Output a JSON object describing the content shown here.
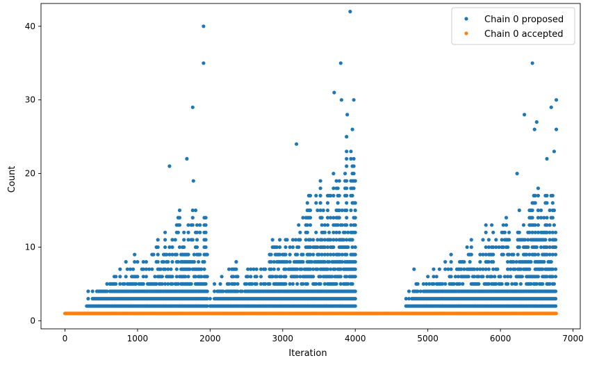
{
  "chart_data": {
    "type": "scatter",
    "xlabel": "Iteration",
    "ylabel": "Count",
    "xlim": [
      -330,
      7100
    ],
    "ylim": [
      -1.1,
      43.1
    ],
    "xticks": [
      0,
      1000,
      2000,
      3000,
      4000,
      5000,
      6000,
      7000
    ],
    "yticks": [
      0,
      10,
      20,
      30,
      40
    ],
    "grid": false,
    "legend": {
      "placement": "top-right"
    },
    "series": [
      {
        "name": "Chain 0 proposed",
        "color": "#1f77b4",
        "marker": "circle",
        "envelopes": [
          {
            "x_start": 300,
            "x_end": 1960,
            "y_min": 2,
            "y_max_start": 3,
            "y_max_end": 15
          },
          {
            "x_start": 2000,
            "x_end": 2380,
            "y_min": 2,
            "y_max_start": 4,
            "y_max_end": 7
          },
          {
            "x_start": 2400,
            "x_end": 4000,
            "y_min": 2,
            "y_max_start": 5,
            "y_max_end": 21
          },
          {
            "x_start": 4700,
            "x_end": 6770,
            "y_min": 2,
            "y_max_start": 3,
            "y_max_end": 18
          }
        ],
        "outliers": [
          {
            "x": 1910,
            "y": 40
          },
          {
            "x": 1910,
            "y": 35
          },
          {
            "x": 1760,
            "y": 29
          },
          {
            "x": 1680,
            "y": 22
          },
          {
            "x": 1440,
            "y": 21
          },
          {
            "x": 1770,
            "y": 19
          },
          {
            "x": 3930,
            "y": 42
          },
          {
            "x": 3800,
            "y": 35
          },
          {
            "x": 3710,
            "y": 31
          },
          {
            "x": 3810,
            "y": 30
          },
          {
            "x": 3980,
            "y": 30
          },
          {
            "x": 3890,
            "y": 28
          },
          {
            "x": 3960,
            "y": 26
          },
          {
            "x": 3880,
            "y": 25
          },
          {
            "x": 3190,
            "y": 24
          },
          {
            "x": 4810,
            "y": 7
          },
          {
            "x": 6440,
            "y": 35
          },
          {
            "x": 6770,
            "y": 30
          },
          {
            "x": 6700,
            "y": 29
          },
          {
            "x": 6330,
            "y": 28
          },
          {
            "x": 6500,
            "y": 27
          },
          {
            "x": 6470,
            "y": 26
          },
          {
            "x": 6770,
            "y": 26
          },
          {
            "x": 6740,
            "y": 23
          },
          {
            "x": 6640,
            "y": 22
          },
          {
            "x": 6230,
            "y": 20
          }
        ]
      },
      {
        "name": "Chain 0 accepted",
        "color": "#ff7f0e",
        "marker": "circle",
        "x_range": [
          0,
          6770
        ],
        "y": 1
      }
    ]
  }
}
